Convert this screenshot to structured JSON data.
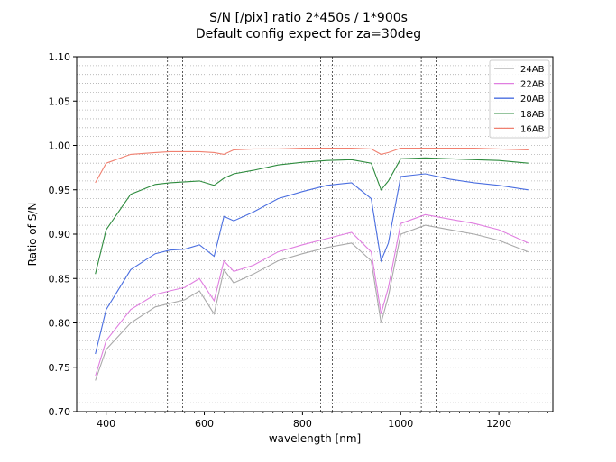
{
  "chart_data": {
    "type": "line",
    "title": "S/N [/pix] ratio 2*450s / 1*900s",
    "subtitle": "Default config expect for za=30deg",
    "xlabel": "wavelength [nm]",
    "ylabel": "Ratio of S/N",
    "xlim": [
      340,
      1310
    ],
    "ylim": [
      0.7,
      1.1
    ],
    "x_ticks": [
      "400",
      "600",
      "800",
      "1000",
      "1200"
    ],
    "y_ticks": [
      "0.70",
      "0.75",
      "0.80",
      "0.85",
      "0.90",
      "0.95",
      "1.00",
      "1.05",
      "1.10"
    ],
    "grid": "minor-y dotted",
    "legend_placement": "top-right",
    "vertical_lines_nm": [
      525,
      556,
      837,
      861,
      1042,
      1072
    ],
    "series": [
      {
        "name": "24AB",
        "color": "#a9a9a9",
        "x": [
          378,
          400,
          450,
          500,
          530,
          560,
          590,
          620,
          640,
          660,
          700,
          750,
          800,
          850,
          900,
          940,
          960,
          975,
          1000,
          1050,
          1100,
          1150,
          1200,
          1260
        ],
        "y": [
          0.735,
          0.77,
          0.8,
          0.818,
          0.822,
          0.826,
          0.836,
          0.81,
          0.86,
          0.845,
          0.855,
          0.87,
          0.878,
          0.885,
          0.89,
          0.87,
          0.8,
          0.83,
          0.9,
          0.91,
          0.905,
          0.9,
          0.893,
          0.88
        ]
      },
      {
        "name": "22AB",
        "color": "#e07ee0",
        "x": [
          378,
          400,
          450,
          500,
          530,
          560,
          590,
          620,
          640,
          660,
          700,
          750,
          800,
          850,
          900,
          940,
          960,
          975,
          1000,
          1050,
          1100,
          1150,
          1200,
          1260
        ],
        "y": [
          0.74,
          0.78,
          0.815,
          0.832,
          0.836,
          0.84,
          0.85,
          0.825,
          0.87,
          0.858,
          0.865,
          0.88,
          0.888,
          0.895,
          0.902,
          0.88,
          0.81,
          0.84,
          0.912,
          0.922,
          0.917,
          0.912,
          0.905,
          0.89
        ]
      },
      {
        "name": "20AB",
        "color": "#4a6ee0",
        "x": [
          378,
          400,
          450,
          500,
          530,
          560,
          590,
          620,
          640,
          660,
          700,
          750,
          800,
          850,
          900,
          940,
          960,
          975,
          1000,
          1050,
          1100,
          1150,
          1200,
          1260
        ],
        "y": [
          0.765,
          0.815,
          0.86,
          0.878,
          0.882,
          0.883,
          0.888,
          0.875,
          0.92,
          0.915,
          0.925,
          0.94,
          0.948,
          0.955,
          0.958,
          0.94,
          0.87,
          0.89,
          0.965,
          0.968,
          0.962,
          0.958,
          0.955,
          0.95
        ]
      },
      {
        "name": "18AB",
        "color": "#2e8b3e",
        "x": [
          378,
          400,
          450,
          500,
          530,
          560,
          590,
          620,
          640,
          660,
          700,
          750,
          800,
          850,
          900,
          940,
          960,
          975,
          1000,
          1050,
          1100,
          1150,
          1200,
          1260
        ],
        "y": [
          0.855,
          0.905,
          0.945,
          0.956,
          0.958,
          0.959,
          0.96,
          0.955,
          0.963,
          0.968,
          0.972,
          0.978,
          0.981,
          0.983,
          0.984,
          0.98,
          0.95,
          0.96,
          0.985,
          0.986,
          0.985,
          0.984,
          0.983,
          0.98
        ]
      },
      {
        "name": "16AB",
        "color": "#f08070",
        "x": [
          378,
          400,
          450,
          500,
          530,
          560,
          590,
          620,
          640,
          660,
          700,
          750,
          800,
          850,
          900,
          940,
          960,
          975,
          1000,
          1050,
          1100,
          1150,
          1200,
          1260
        ],
        "y": [
          0.958,
          0.98,
          0.99,
          0.992,
          0.993,
          0.993,
          0.993,
          0.992,
          0.99,
          0.995,
          0.996,
          0.996,
          0.997,
          0.997,
          0.997,
          0.996,
          0.99,
          0.992,
          0.997,
          0.997,
          0.997,
          0.997,
          0.996,
          0.995
        ]
      }
    ]
  }
}
